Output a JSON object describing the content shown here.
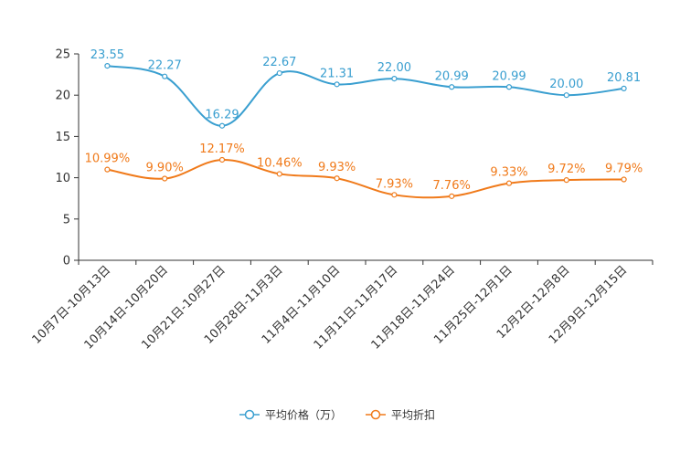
{
  "chart_data": {
    "type": "line",
    "title": "",
    "xlabel": "",
    "ylabel": "",
    "ylim": [
      0,
      25
    ],
    "yticks": [
      0,
      5,
      10,
      15,
      20,
      25
    ],
    "categories": [
      "10月7日-10月13日",
      "10月14日-10月20日",
      "10月21日-10月27日",
      "10月28日-11月3日",
      "11月4日-11月10日",
      "11月11日-11月17日",
      "11月18日-11月24日",
      "11月25日-12月1日",
      "12月2日-12月8日",
      "12月9日-12月15日"
    ],
    "series": [
      {
        "name": "平均价格（万）",
        "color": "#3a9fd0",
        "values": [
          23.55,
          22.27,
          16.29,
          22.67,
          21.31,
          22.0,
          20.99,
          20.99,
          20.0,
          20.81
        ],
        "labels": [
          "23.55",
          "22.27",
          "16.29",
          "22.67",
          "21.31",
          "22.00",
          "20.99",
          "20.99",
          "20.00",
          "20.81"
        ]
      },
      {
        "name": "平均折扣",
        "color": "#f07a1a",
        "values": [
          10.99,
          9.9,
          12.17,
          10.46,
          9.93,
          7.93,
          7.76,
          9.33,
          9.72,
          9.79
        ],
        "labels": [
          "10.99%",
          "9.90%",
          "12.17%",
          "10.46%",
          "9.93%",
          "7.93%",
          "7.76%",
          "9.33%",
          "9.72%",
          "9.79%"
        ]
      }
    ],
    "legend_position": "bottom-center",
    "grid": false
  }
}
